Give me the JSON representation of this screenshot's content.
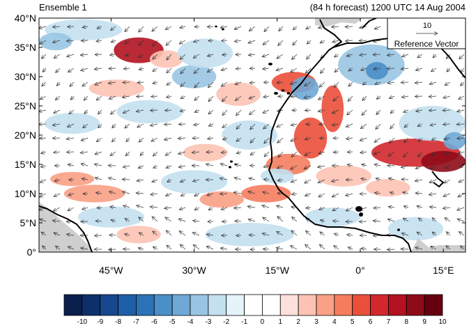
{
  "title_left": "Ensemble 1",
  "title_right": "(84 h forecast) 1200 UTC 14 Aug 2004",
  "map": {
    "lon_range": [
      -58,
      19
    ],
    "lat_range": [
      0,
      40
    ],
    "lat_ticks": [
      {
        "value": 40,
        "label": "40°N"
      },
      {
        "value": 35,
        "label": "35°N"
      },
      {
        "value": 30,
        "label": "30°N"
      },
      {
        "value": 25,
        "label": "25°N"
      },
      {
        "value": 20,
        "label": "20°N"
      },
      {
        "value": 15,
        "label": "15°N"
      },
      {
        "value": 10,
        "label": "10°N"
      },
      {
        "value": 5,
        "label": "5°N"
      },
      {
        "value": 0,
        "label": "0°"
      }
    ],
    "lon_ticks": [
      {
        "value": -45,
        "label": "45°W"
      },
      {
        "value": -30,
        "label": "30°W"
      },
      {
        "value": -15,
        "label": "15°W"
      },
      {
        "value": 0,
        "label": "0°"
      },
      {
        "value": 15,
        "label": "15°E"
      }
    ]
  },
  "reference_vector": {
    "magnitude": "10",
    "label": "Reference Vector"
  },
  "colorbar": {
    "labels": [
      "-10",
      "-9",
      "-8",
      "-7",
      "-6",
      "-5",
      "-4",
      "-3",
      "-2",
      "-1",
      "0",
      "1",
      "2",
      "3",
      "4",
      "5",
      "6",
      "7",
      "8",
      "9",
      "10"
    ],
    "colors": [
      "#0b1f4d",
      "#0d306b",
      "#17478f",
      "#1f5ea8",
      "#2c72b6",
      "#4a8fc7",
      "#6fa8d6",
      "#99c5e3",
      "#c3e0f0",
      "#e5f3fa",
      "#ffffff",
      "#ffffff",
      "#fde0db",
      "#fcc3b4",
      "#faa085",
      "#f57d5e",
      "#ea4f3a",
      "#d2282d",
      "#b31220",
      "#8e0b18",
      "#66000f"
    ]
  },
  "anomalies": [
    {
      "lon": -40,
      "lat": 34.5,
      "rx": 4.5,
      "ry": 2.2,
      "v": 7
    },
    {
      "lon": -35,
      "lat": 33,
      "rx": 3,
      "ry": 1.5,
      "v": 2
    },
    {
      "lon": -12,
      "lat": 29,
      "rx": 4,
      "ry": 1.8,
      "v": 5
    },
    {
      "lon": -5,
      "lat": 24.5,
      "rx": 2,
      "ry": 4,
      "v": 5
    },
    {
      "lon": -9,
      "lat": 19.5,
      "rx": 3,
      "ry": 3.5,
      "v": 5
    },
    {
      "lon": -13,
      "lat": 15,
      "rx": 4,
      "ry": 1.8,
      "v": 4
    },
    {
      "lon": -17,
      "lat": 10,
      "rx": 4.5,
      "ry": 1.5,
      "v": 4
    },
    {
      "lon": -25,
      "lat": 9,
      "rx": 4,
      "ry": 1.4,
      "v": 3
    },
    {
      "lon": -48,
      "lat": 10,
      "rx": 5.5,
      "ry": 1.5,
      "v": 3
    },
    {
      "lon": -52,
      "lat": 12.5,
      "rx": 4,
      "ry": 1.2,
      "v": 3
    },
    {
      "lon": 10,
      "lat": 17,
      "rx": 8,
      "ry": 2.4,
      "v": 6
    },
    {
      "lon": 15,
      "lat": 15.5,
      "rx": 4,
      "ry": 1.8,
      "v": 8
    },
    {
      "lon": -44,
      "lat": 28,
      "rx": 5,
      "ry": 1.5,
      "v": 2
    },
    {
      "lon": -22,
      "lat": 27,
      "rx": 4,
      "ry": 2,
      "v": 2
    },
    {
      "lon": -28,
      "lat": 17,
      "rx": 4,
      "ry": 1.5,
      "v": 2
    },
    {
      "lon": -3,
      "lat": 13,
      "rx": 5,
      "ry": 1.8,
      "v": 2
    },
    {
      "lon": 5,
      "lat": 11,
      "rx": 4,
      "ry": 1.5,
      "v": 2
    },
    {
      "lon": -40,
      "lat": 3,
      "rx": 4,
      "ry": 1.5,
      "v": 2
    },
    {
      "lon": -30,
      "lat": 30,
      "rx": 4,
      "ry": 2,
      "v": -3
    },
    {
      "lon": -28,
      "lat": 34,
      "rx": 5,
      "ry": 2.5,
      "v": -2
    },
    {
      "lon": 2,
      "lat": 32,
      "rx": 6,
      "ry": 3.5,
      "v": -3
    },
    {
      "lon": 3,
      "lat": 31,
      "rx": 2,
      "ry": 1.5,
      "v": -5
    },
    {
      "lon": -10,
      "lat": 28,
      "rx": 2.5,
      "ry": 2,
      "v": -4
    },
    {
      "lon": -50,
      "lat": 38,
      "rx": 7,
      "ry": 1.8,
      "v": -2
    },
    {
      "lon": -52,
      "lat": 22,
      "rx": 5,
      "ry": 1.8,
      "v": -2
    },
    {
      "lon": -38,
      "lat": 24,
      "rx": 6,
      "ry": 2,
      "v": -2
    },
    {
      "lon": -20,
      "lat": 20,
      "rx": 5,
      "ry": 2.5,
      "v": -2
    },
    {
      "lon": -15,
      "lat": 13,
      "rx": 3,
      "ry": 1.3,
      "v": -2
    },
    {
      "lon": -30,
      "lat": 12,
      "rx": 6,
      "ry": 2,
      "v": -2
    },
    {
      "lon": -45,
      "lat": 6,
      "rx": 6,
      "ry": 1.8,
      "v": -2
    },
    {
      "lon": -20,
      "lat": 3,
      "rx": 8,
      "ry": 2,
      "v": -2
    },
    {
      "lon": 13,
      "lat": 22,
      "rx": 6,
      "ry": 3,
      "v": -2
    },
    {
      "lon": 17,
      "lat": 19,
      "rx": 2,
      "ry": 1.5,
      "v": -4
    },
    {
      "lon": -5,
      "lat": 6,
      "rx": 5,
      "ry": 1.6,
      "v": -2
    },
    {
      "lon": 10,
      "lat": 4,
      "rx": 5,
      "ry": 2,
      "v": -2
    },
    {
      "lon": -55,
      "lat": 36,
      "rx": 3,
      "ry": 1.5,
      "v": -3
    }
  ]
}
